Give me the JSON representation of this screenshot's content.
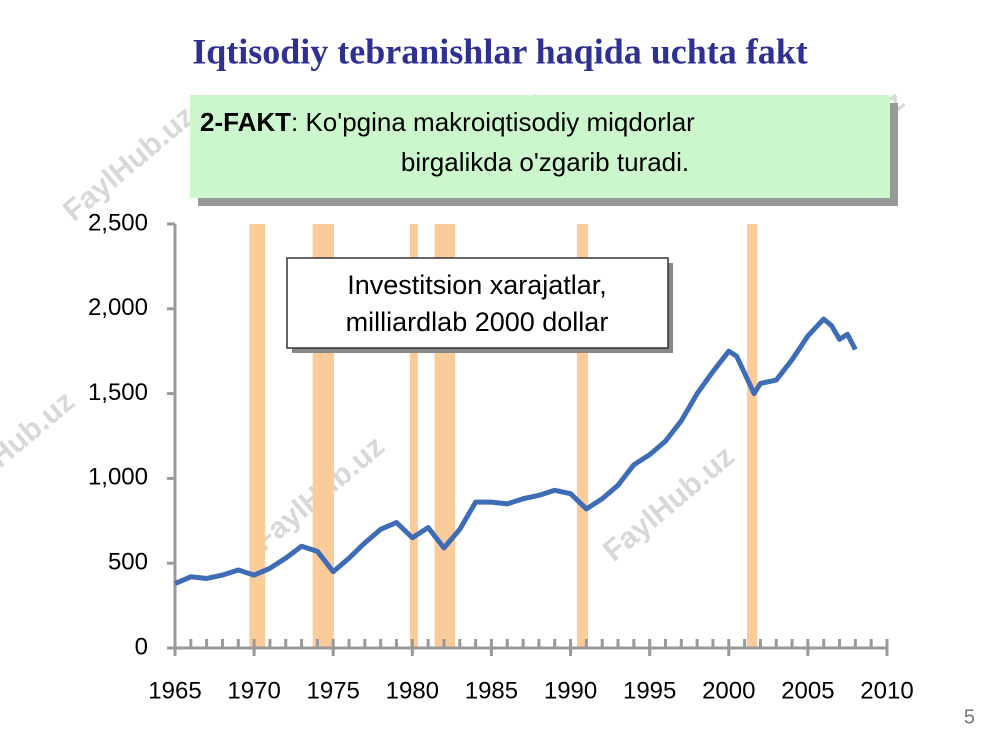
{
  "title": "Iqtisodiy tebranishlar haqida uchta fakt",
  "fact": {
    "label": "2-FAKT",
    "text_lines": [
      ": Ko'pgina makroiqtisodiy miqdorlar",
      "birgalikda o'zgarib turadi."
    ]
  },
  "watermark": "FaylHub.uz",
  "page_number": "5",
  "chart_data": {
    "type": "line",
    "annotation_lines": [
      "Investitsion xarajatlar,",
      "milliardlab 2000 dollar"
    ],
    "series": [
      {
        "color": "#3f6db5",
        "x": [
          1965,
          1966,
          1967,
          1968,
          1969,
          1970,
          1971,
          1972,
          1973,
          1974,
          1975,
          1976,
          1977,
          1978,
          1979,
          1980,
          1981,
          1982,
          1983,
          1984,
          1985,
          1986,
          1987,
          1988,
          1989,
          1990,
          1991,
          1992,
          1993,
          1994,
          1995,
          1996,
          1997,
          1998,
          1999,
          2000,
          2000.5,
          2001,
          2001.6,
          2002,
          2003,
          2004,
          2005,
          2006,
          2006.5,
          2007,
          2007.5,
          2008
        ],
        "values": [
          380,
          420,
          410,
          430,
          460,
          430,
          470,
          530,
          600,
          570,
          450,
          530,
          620,
          700,
          740,
          650,
          710,
          590,
          700,
          860,
          860,
          850,
          880,
          900,
          930,
          910,
          820,
          880,
          960,
          1080,
          1140,
          1220,
          1340,
          1500,
          1630,
          1750,
          1720,
          1620,
          1500,
          1560,
          1580,
          1700,
          1840,
          1940,
          1900,
          1820,
          1850,
          1760
        ]
      }
    ],
    "recessions": {
      "color": "#fccb9a",
      "spans": [
        [
          1969.7,
          1970.7
        ],
        [
          1973.7,
          1975.05
        ],
        [
          1979.85,
          1980.35
        ],
        [
          1981.4,
          1982.7
        ],
        [
          1990.4,
          1991.1
        ],
        [
          2001.15,
          2001.8
        ]
      ]
    },
    "xlim": [
      1965,
      2010
    ],
    "xticks": [
      1965,
      1970,
      1975,
      1980,
      1985,
      1990,
      1995,
      2000,
      2005,
      2010
    ],
    "ylim": [
      0,
      2500
    ],
    "yticks": [
      0,
      500,
      {
        "value": 1000,
        "label": "1,000"
      },
      {
        "value": 1500,
        "label": "1,500"
      },
      {
        "value": 2000,
        "label": "2,000"
      },
      {
        "value": 2500,
        "label": "2,500"
      }
    ]
  }
}
